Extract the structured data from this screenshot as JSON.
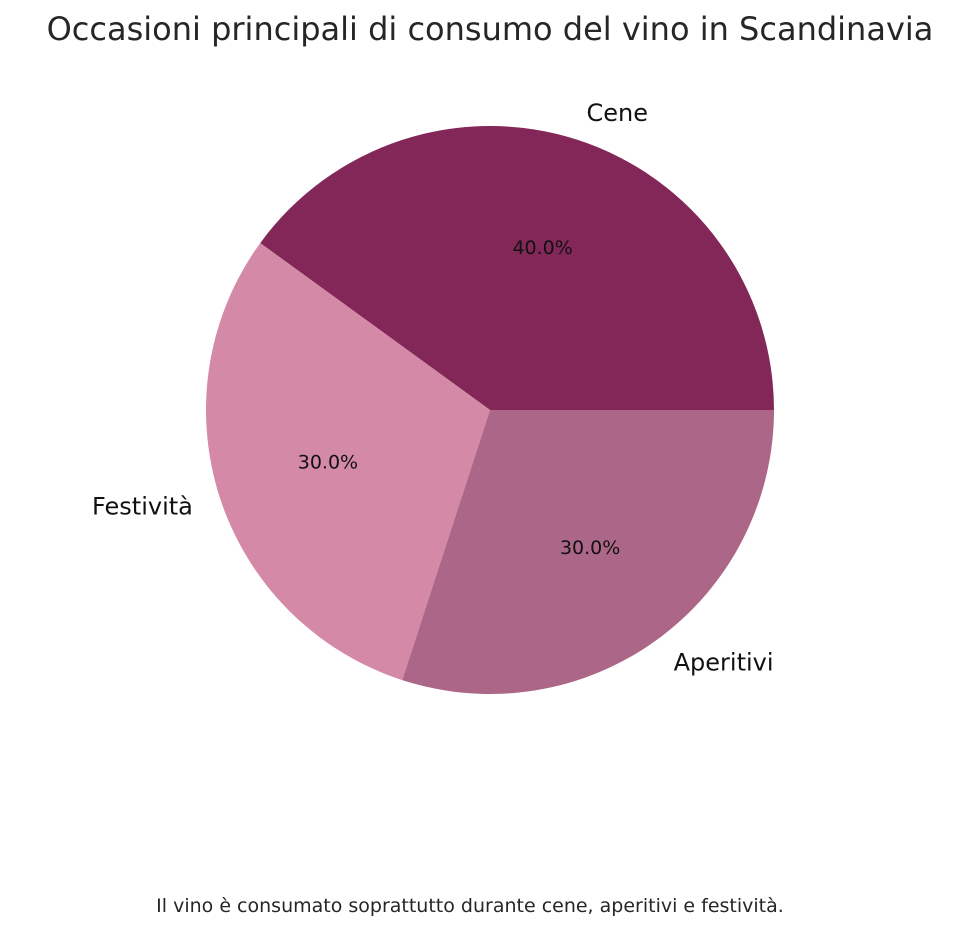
{
  "chart_data": {
    "type": "pie",
    "title": "Occasioni principali di consumo del vino in Scandinavia",
    "slices": [
      {
        "label": "Cene",
        "value": 40.0,
        "pct_label": "40.0%",
        "color": "#822757"
      },
      {
        "label": "Festività",
        "value": 30.0,
        "pct_label": "30.0%",
        "color": "#d48aa7"
      },
      {
        "label": "Aperitivi",
        "value": 30.0,
        "pct_label": "30.0%",
        "color": "#ac6687"
      }
    ],
    "start_angle_deg": 0,
    "direction": "counterclockwise"
  },
  "caption": "Il vino è consumato soprattutto durante cene, aperitivi e festività."
}
